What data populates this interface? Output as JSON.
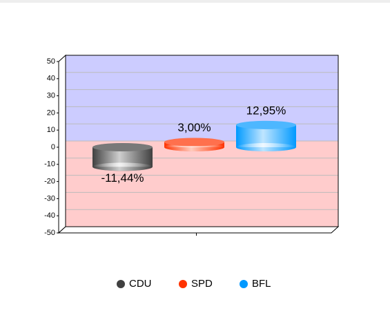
{
  "chart_data": {
    "type": "cylinder-bar",
    "categories": [
      null
    ],
    "series": [
      {
        "name": "CDU",
        "color": "#404040",
        "values": [
          -11.44
        ],
        "value_labels": [
          "-11,44%"
        ]
      },
      {
        "name": "SPD",
        "color": "#ff3300",
        "values": [
          3.0
        ],
        "value_labels": [
          "3,00%"
        ]
      },
      {
        "name": "BFL",
        "color": "#0099ff",
        "values": [
          12.95
        ],
        "value_labels": [
          "12,95%"
        ]
      }
    ],
    "ylim": [
      -50,
      50
    ],
    "yticks": [
      -50,
      -40,
      -30,
      -20,
      -10,
      0,
      10,
      20,
      30,
      40,
      50
    ],
    "grid": true,
    "legend": "bottom",
    "background_above_zero": "#ccccff",
    "background_below_zero": "#ffcccc"
  }
}
